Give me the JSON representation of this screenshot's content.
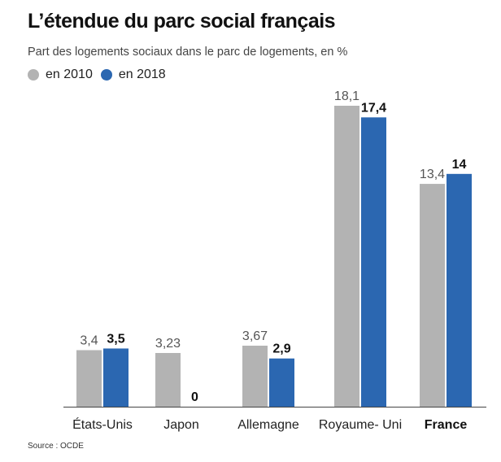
{
  "title": "L’étendue du parc social français",
  "subtitle": "Part des logements sociaux dans le parc de logements, en %",
  "source": "Source : OCDE",
  "colors": {
    "series_2010": "#b3b3b3",
    "series_2018": "#2b67b1",
    "axis": "#444444"
  },
  "chart_data": {
    "type": "bar",
    "title": "L’étendue du parc social français",
    "subtitle": "Part des logements sociaux dans le parc de logements, en %",
    "xlabel": "",
    "ylabel": "",
    "ylim": [
      0,
      20
    ],
    "grid": false,
    "legend": "top-left",
    "categories": [
      "États-Unis",
      "Japon",
      "Allemagne",
      "Royaume- Uni",
      "France"
    ],
    "highlight_category": "France",
    "series": [
      {
        "name": "en 2010",
        "values": [
          3.4,
          3.23,
          3.67,
          18.1,
          13.4
        ],
        "labels": [
          "3,4",
          "3,23",
          "3,67",
          "18,1",
          "13,4"
        ],
        "color": "#b3b3b3"
      },
      {
        "name": "en 2018",
        "values": [
          3.5,
          0,
          2.9,
          17.4,
          14
        ],
        "labels": [
          "3,5",
          "0",
          "2,9",
          "17,4",
          "14"
        ],
        "color": "#2b67b1"
      }
    ]
  }
}
